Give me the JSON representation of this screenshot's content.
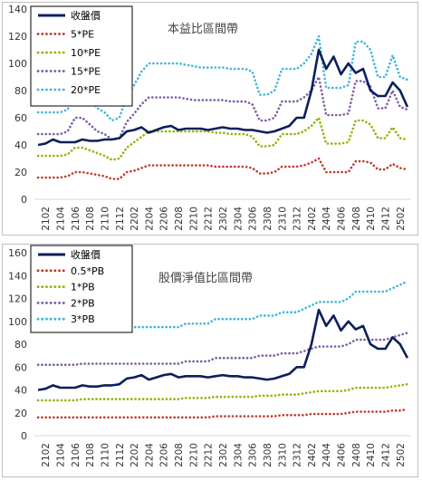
{
  "chart_data": [
    {
      "type": "line",
      "title": "本益比區間帶",
      "ylim": [
        0,
        140
      ],
      "yticks": [
        0,
        20,
        40,
        60,
        80,
        100,
        120,
        140
      ],
      "x": [
        "2101",
        "2102",
        "2103",
        "2104",
        "2105",
        "2106",
        "2107",
        "2108",
        "2109",
        "2110",
        "2111",
        "2112",
        "2201",
        "2202",
        "2203",
        "2204",
        "2205",
        "2206",
        "2207",
        "2208",
        "2209",
        "2210",
        "2211",
        "2212",
        "2301",
        "2302",
        "2303",
        "2304",
        "2305",
        "2306",
        "2307",
        "2308",
        "2309",
        "2310",
        "2311",
        "2312",
        "2401",
        "2402",
        "2403",
        "2404",
        "2405",
        "2406",
        "2407",
        "2408",
        "2409",
        "2410",
        "2411",
        "2412",
        "2501",
        "2502",
        "2503"
      ],
      "xtick_labels": [
        "2102",
        "2104",
        "2106",
        "2108",
        "2110",
        "2112",
        "2202",
        "2204",
        "2206",
        "2208",
        "2210",
        "2212",
        "2302",
        "2304",
        "2306",
        "2308",
        "2310",
        "2312",
        "2402",
        "2404",
        "2406",
        "2408",
        "2410",
        "2412",
        "2502"
      ],
      "legend_position": "top-left",
      "series": [
        {
          "name": "收盤價",
          "color": "#0b1f5c",
          "style": "solid",
          "values": [
            40,
            41,
            44,
            42,
            42,
            42,
            44,
            43,
            43,
            44,
            44,
            45,
            50,
            51,
            53,
            49,
            51,
            53,
            54,
            51,
            52,
            52,
            52,
            51,
            52,
            53,
            52,
            52,
            51,
            51,
            50,
            49,
            50,
            52,
            54,
            60,
            60,
            80,
            110,
            96,
            105,
            92,
            100,
            93,
            96,
            80,
            76,
            76,
            86,
            80,
            68
          ]
        },
        {
          "name": "5*PE",
          "color": "#c0392b",
          "style": "dotted",
          "values": [
            16,
            16,
            16,
            16,
            17,
            20,
            20,
            19,
            18,
            17,
            15,
            15,
            20,
            21,
            23,
            25,
            25,
            25,
            25,
            25,
            25,
            25,
            25,
            25,
            24,
            24,
            24,
            24,
            24,
            23,
            19,
            19,
            20,
            24,
            24,
            24,
            25,
            27,
            30,
            20,
            20,
            20,
            20,
            28,
            28,
            27,
            22,
            22,
            26,
            23,
            22
          ]
        },
        {
          "name": "10*PE",
          "color": "#8db600",
          "style": "dotted",
          "values": [
            32,
            32,
            32,
            32,
            33,
            38,
            38,
            36,
            34,
            32,
            29,
            30,
            38,
            42,
            46,
            50,
            50,
            50,
            50,
            50,
            50,
            50,
            50,
            50,
            49,
            49,
            48,
            48,
            48,
            46,
            39,
            39,
            40,
            48,
            48,
            48,
            50,
            54,
            60,
            41,
            41,
            41,
            42,
            58,
            58,
            55,
            45,
            45,
            53,
            45,
            44
          ]
        },
        {
          "name": "15*PE",
          "color": "#7d5ba6",
          "style": "dotted",
          "values": [
            48,
            48,
            48,
            48,
            50,
            60,
            60,
            55,
            50,
            48,
            44,
            45,
            57,
            63,
            70,
            75,
            75,
            75,
            75,
            75,
            74,
            73,
            73,
            73,
            73,
            73,
            72,
            72,
            72,
            70,
            58,
            58,
            60,
            72,
            72,
            72,
            75,
            80,
            90,
            62,
            62,
            62,
            63,
            87,
            87,
            83,
            67,
            67,
            80,
            68,
            66
          ]
        },
        {
          "name": "20*PE",
          "color": "#3fb6d8",
          "style": "dotted",
          "values": [
            64,
            64,
            64,
            64,
            66,
            80,
            80,
            74,
            67,
            64,
            58,
            60,
            76,
            84,
            94,
            100,
            100,
            100,
            100,
            100,
            99,
            98,
            97,
            97,
            97,
            97,
            96,
            96,
            96,
            94,
            77,
            77,
            80,
            96,
            96,
            96,
            100,
            107,
            120,
            82,
            82,
            82,
            84,
            116,
            116,
            110,
            90,
            90,
            106,
            90,
            88
          ]
        }
      ]
    },
    {
      "type": "line",
      "title": "股價淨值比區間帶",
      "ylim": [
        0,
        160
      ],
      "yticks": [
        0,
        20,
        40,
        60,
        80,
        100,
        120,
        140,
        160
      ],
      "x": [
        "2101",
        "2102",
        "2103",
        "2104",
        "2105",
        "2106",
        "2107",
        "2108",
        "2109",
        "2110",
        "2111",
        "2112",
        "2201",
        "2202",
        "2203",
        "2204",
        "2205",
        "2206",
        "2207",
        "2208",
        "2209",
        "2210",
        "2211",
        "2212",
        "2301",
        "2302",
        "2303",
        "2304",
        "2305",
        "2306",
        "2307",
        "2308",
        "2309",
        "2310",
        "2311",
        "2312",
        "2401",
        "2402",
        "2403",
        "2404",
        "2405",
        "2406",
        "2407",
        "2408",
        "2409",
        "2410",
        "2411",
        "2412",
        "2501",
        "2502",
        "2503"
      ],
      "xtick_labels": [
        "2102",
        "2104",
        "2106",
        "2108",
        "2110",
        "2112",
        "2202",
        "2204",
        "2206",
        "2208",
        "2210",
        "2212",
        "2302",
        "2304",
        "2306",
        "2308",
        "2310",
        "2312",
        "2402",
        "2404",
        "2406",
        "2408",
        "2410",
        "2412",
        "2502"
      ],
      "legend_position": "top-left",
      "series": [
        {
          "name": "收盤價",
          "color": "#0b1f5c",
          "style": "solid",
          "values": [
            40,
            41,
            44,
            42,
            42,
            42,
            44,
            43,
            43,
            44,
            44,
            45,
            50,
            51,
            53,
            49,
            51,
            53,
            54,
            51,
            52,
            52,
            52,
            51,
            52,
            53,
            52,
            52,
            51,
            51,
            50,
            49,
            50,
            52,
            54,
            60,
            60,
            80,
            110,
            96,
            105,
            92,
            100,
            93,
            96,
            80,
            76,
            76,
            86,
            80,
            68
          ]
        },
        {
          "name": "0.5*PB",
          "color": "#c0392b",
          "style": "dotted",
          "values": [
            16,
            16,
            16,
            16,
            16,
            16,
            16,
            16,
            16,
            16,
            16,
            16,
            16,
            16,
            16,
            16,
            16,
            16,
            16,
            16,
            16,
            16,
            16,
            16,
            17,
            17,
            17,
            17,
            17,
            17,
            17,
            17,
            17,
            18,
            18,
            18,
            18,
            19,
            19,
            19,
            19,
            19,
            20,
            21,
            21,
            21,
            21,
            21,
            22,
            22,
            23
          ]
        },
        {
          "name": "1*PB",
          "color": "#8db600",
          "style": "dotted",
          "values": [
            31,
            31,
            31,
            31,
            31,
            31,
            32,
            32,
            32,
            32,
            32,
            32,
            32,
            32,
            32,
            32,
            32,
            32,
            32,
            32,
            33,
            33,
            33,
            33,
            34,
            34,
            34,
            34,
            34,
            34,
            35,
            35,
            35,
            36,
            36,
            36,
            37,
            38,
            39,
            39,
            39,
            39,
            40,
            42,
            42,
            42,
            42,
            42,
            43,
            44,
            45
          ]
        },
        {
          "name": "2*PB",
          "color": "#7d5ba6",
          "style": "dotted",
          "values": [
            62,
            62,
            62,
            62,
            62,
            62,
            63,
            63,
            63,
            63,
            63,
            63,
            63,
            63,
            63,
            63,
            63,
            63,
            63,
            63,
            65,
            65,
            65,
            65,
            68,
            68,
            68,
            68,
            68,
            68,
            70,
            70,
            70,
            72,
            72,
            72,
            74,
            76,
            78,
            78,
            78,
            78,
            80,
            84,
            84,
            84,
            84,
            84,
            86,
            88,
            90
          ]
        },
        {
          "name": "3*PB",
          "color": "#3fb6d8",
          "style": "dotted",
          "values": [
            93,
            93,
            93,
            93,
            93,
            93,
            95,
            95,
            95,
            95,
            95,
            95,
            95,
            95,
            95,
            95,
            95,
            95,
            95,
            95,
            98,
            98,
            98,
            98,
            102,
            102,
            102,
            102,
            102,
            102,
            105,
            105,
            105,
            108,
            108,
            108,
            111,
            114,
            117,
            117,
            117,
            117,
            120,
            126,
            126,
            126,
            126,
            126,
            129,
            132,
            135
          ]
        }
      ]
    }
  ]
}
